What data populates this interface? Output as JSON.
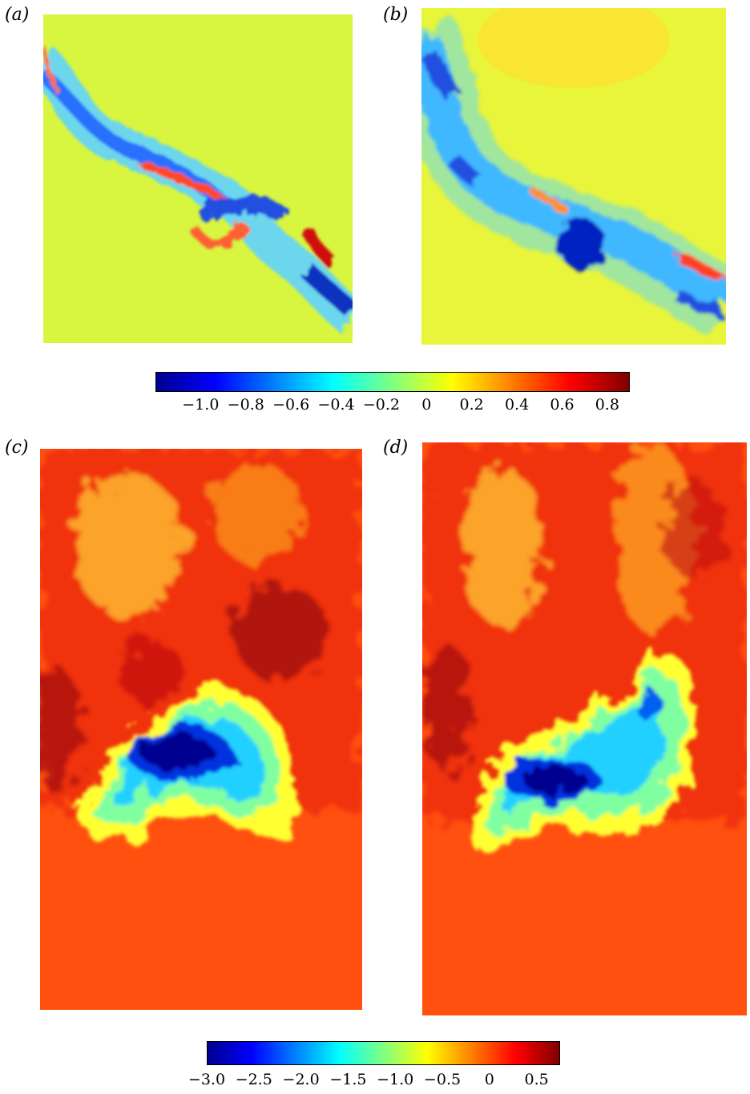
{
  "panels": [
    {
      "id": "a",
      "label": "(a)"
    },
    {
      "id": "b",
      "label": "(b)"
    },
    {
      "id": "c",
      "label": "(c)"
    },
    {
      "id": "d",
      "label": "(d)"
    }
  ],
  "colorbars": [
    {
      "id": "top",
      "min": -1.2,
      "max": 0.9,
      "ticks": [
        {
          "value": -1.0,
          "label": "−1.0"
        },
        {
          "value": -0.8,
          "label": "−0.8"
        },
        {
          "value": -0.6,
          "label": "−0.6"
        },
        {
          "value": -0.4,
          "label": "−0.4"
        },
        {
          "value": -0.2,
          "label": "−0.2"
        },
        {
          "value": 0,
          "label": "0"
        },
        {
          "value": 0.2,
          "label": "0.2"
        },
        {
          "value": 0.4,
          "label": "0.4"
        },
        {
          "value": 0.6,
          "label": "0.6"
        },
        {
          "value": 0.8,
          "label": "0.8"
        }
      ]
    },
    {
      "id": "bottom",
      "min": -3.0,
      "max": 0.75,
      "ticks": [
        {
          "value": -3.0,
          "label": "−3.0"
        },
        {
          "value": -2.5,
          "label": "−2.5"
        },
        {
          "value": -2.0,
          "label": "−2.0"
        },
        {
          "value": -1.5,
          "label": "−1.5"
        },
        {
          "value": -1.0,
          "label": "−1.0"
        },
        {
          "value": -0.5,
          "label": "−0.5"
        },
        {
          "value": 0,
          "label": "0"
        },
        {
          "value": 0.5,
          "label": "0.5"
        }
      ]
    }
  ],
  "colormap": [
    "#00008f",
    "#0000ff",
    "#0080ff",
    "#00ffff",
    "#80ff80",
    "#ffff00",
    "#ff8000",
    "#ff0000",
    "#800000"
  ]
}
